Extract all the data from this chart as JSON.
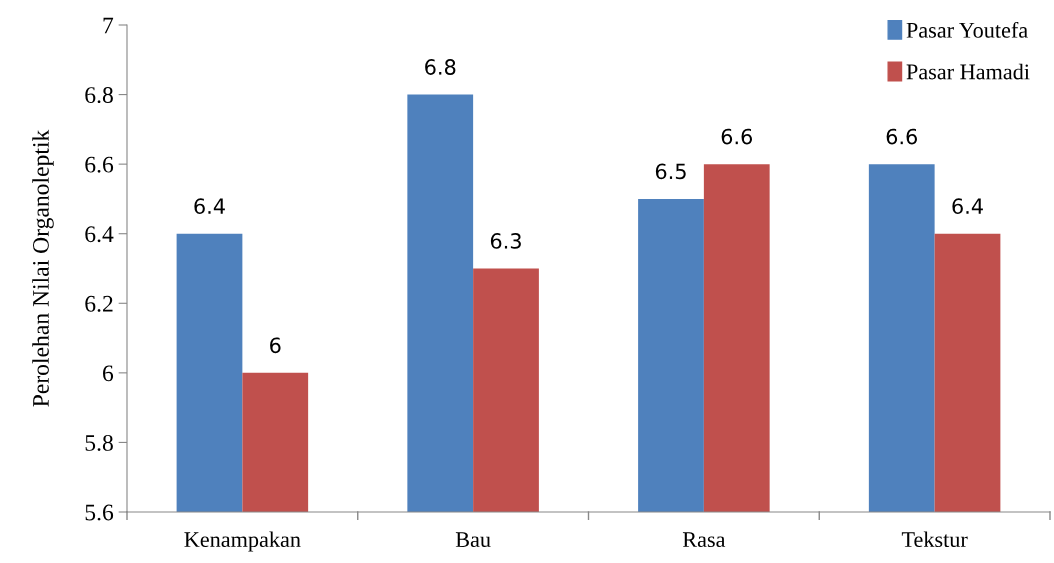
{
  "chart_data": {
    "type": "bar",
    "ylabel": "Perolehan Nilai Organoleptik",
    "categories": [
      "Kenampakan",
      "Bau",
      "Rasa",
      "Tekstur"
    ],
    "series": [
      {
        "name": "Pasar Youtefa",
        "color": "#4f81bd",
        "values": [
          6.4,
          6.8,
          6.5,
          6.6
        ]
      },
      {
        "name": "Pasar Hamadi",
        "color": "#c0504d",
        "values": [
          6.0,
          6.3,
          6.6,
          6.4
        ]
      }
    ],
    "ylim": [
      5.6,
      7
    ],
    "yticks": [
      5.6,
      5.8,
      6,
      6.2,
      6.4,
      6.6,
      6.8,
      7
    ],
    "data_labels": true,
    "legend": "top right",
    "grid": false
  }
}
